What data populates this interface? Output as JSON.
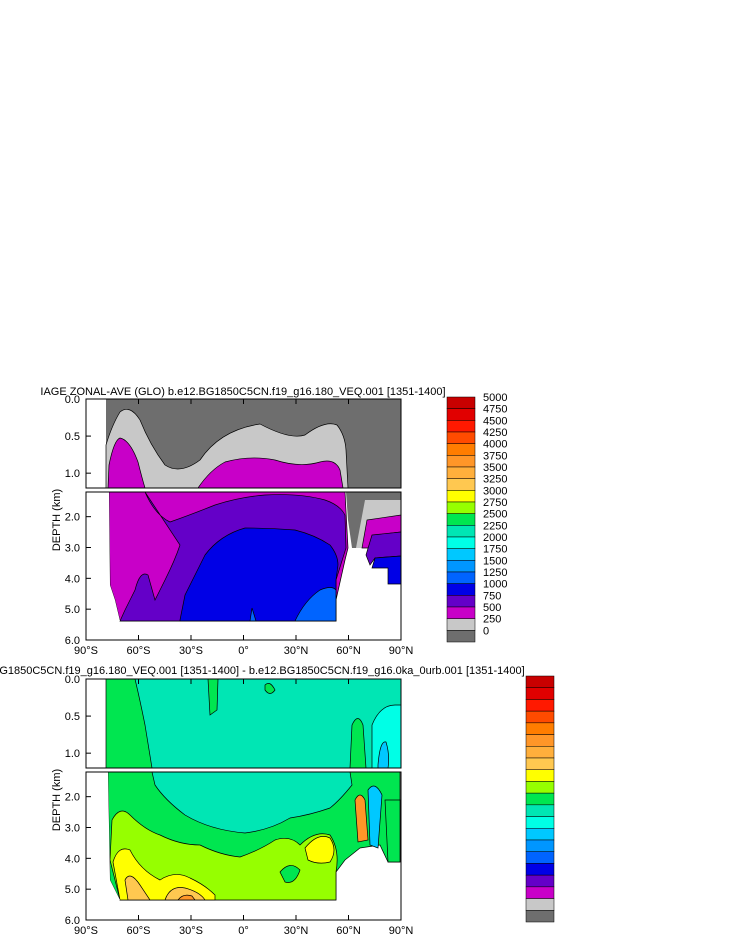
{
  "chart_data": [
    {
      "type": "heatmap",
      "title": "IAGE ZONAL-AVE (GLO) b.e12.BG1850C5CN.f19_g16.180_VEQ.001 [1351-1400]",
      "xlabel": "",
      "ylabel": "DEPTH (km)",
      "x_ticks": [
        "90°S",
        "60°S",
        "30°S",
        "0°",
        "30°N",
        "60°N",
        "90°N"
      ],
      "y_ticks_upper": [
        "0.0",
        "0.5",
        "1.0"
      ],
      "y_ticks_lower": [
        "2.0",
        "3.0",
        "4.0",
        "5.0",
        "6.0"
      ],
      "xlim": [
        -90,
        90
      ],
      "ylim": [
        0,
        6
      ],
      "colorbar": {
        "labels": [
          "5000",
          "4750",
          "4500",
          "4250",
          "4000",
          "3750",
          "3500",
          "3250",
          "3000",
          "2750",
          "2500",
          "2250",
          "2000",
          "1750",
          "1500",
          "1250",
          "1000",
          "750",
          "500",
          "250",
          "0"
        ],
        "colors": [
          "#c80000",
          "#e10000",
          "#ff1900",
          "#ff4b00",
          "#ff7d00",
          "#ff9628",
          "#ffaf3c",
          "#ffc850",
          "#ffff00",
          "#96ff00",
          "#00e650",
          "#00e6b4",
          "#00ffe6",
          "#00c8ff",
          "#0096ff",
          "#0064ff",
          "#0000e6",
          "#6400c8",
          "#c800c8",
          "#c8c8c8",
          "#6e6e6e"
        ]
      },
      "depth_bands_at_lat": {
        "lat": [
          -60,
          -30,
          0,
          30,
          55
        ],
        "gray_bottom_km": [
          0.9,
          0.85,
          0.45,
          0.7,
          0.6
        ],
        "magenta_bottom_km": [
          2.3,
          2.0,
          1.75,
          1.8,
          2.3
        ],
        "purple_bottom_km": [
          3.6,
          3.2,
          2.6,
          2.3,
          3.0
        ],
        "blue_bottom_km": [
          5.3,
          5.3,
          5.3,
          5.3,
          5.3
        ]
      }
    },
    {
      "type": "heatmap",
      "title": "G1850C5CN.f19_g16.180_VEQ.001 [1351-1400] - b.e12.BG1850C5CN.f19_g16.0ka_0urb.001 [1351-1400]",
      "xlabel": "",
      "ylabel": "DEPTH (km)",
      "x_ticks": [
        "90°S",
        "60°S",
        "30°S",
        "0°",
        "30°N",
        "60°N",
        "90°N"
      ],
      "y_ticks_upper": [
        "0.0",
        "0.5",
        "1.0"
      ],
      "y_ticks_lower": [
        "2.0",
        "3.0",
        "4.0",
        "5.0",
        "6.0"
      ],
      "xlim": [
        -90,
        90
      ],
      "ylim": [
        0,
        6
      ],
      "colorbar": {
        "labels": [],
        "colors": [
          "#c80000",
          "#e10000",
          "#ff1900",
          "#ff4b00",
          "#ff7d00",
          "#ff9628",
          "#ffaf3c",
          "#ffc850",
          "#ffff00",
          "#96ff00",
          "#00e650",
          "#00e6b4",
          "#00ffe6",
          "#00c8ff",
          "#0096ff",
          "#0064ff",
          "#0000e6",
          "#6400c8",
          "#c800c8",
          "#c8c8c8",
          "#6e6e6e"
        ]
      },
      "dominant_fill": "#00e6b4",
      "secondary_fill": "#00e650"
    }
  ]
}
